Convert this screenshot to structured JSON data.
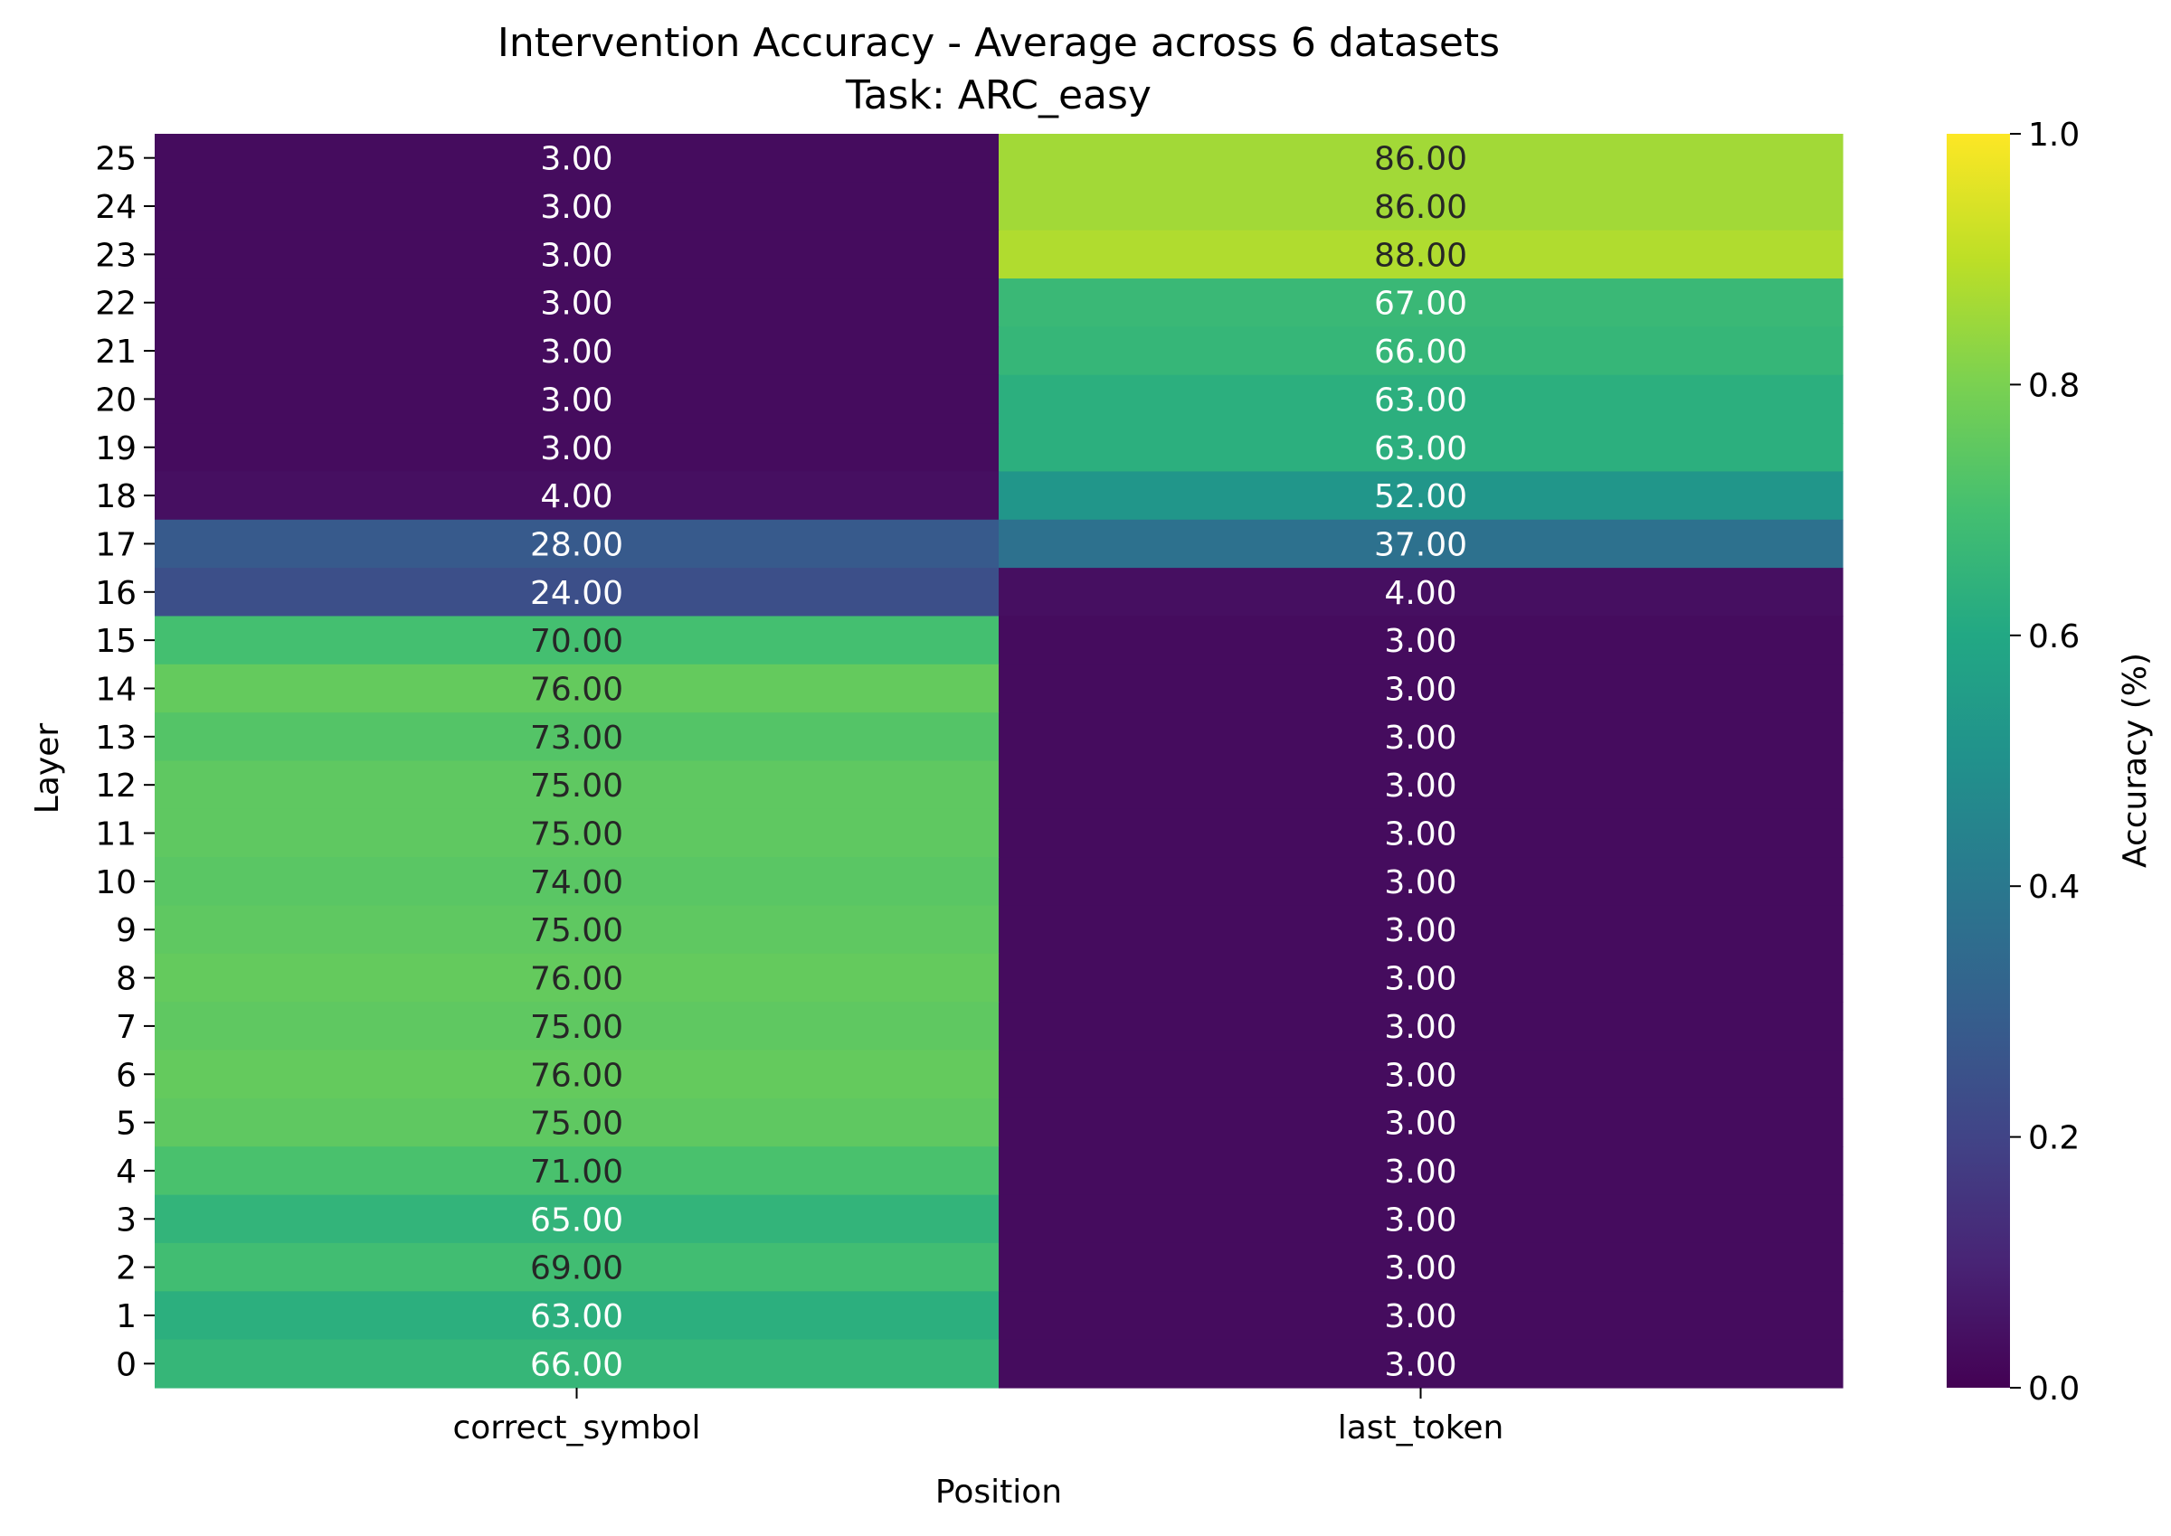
{
  "chart_data": {
    "type": "heatmap",
    "title": "Intervention Accuracy - Average across 6 datasets",
    "subtitle": "Task: ARC_easy",
    "xlabel": "Position",
    "ylabel": "Layer",
    "colorbar_label": "Accuracy (%)",
    "colormap": "viridis",
    "color_range": [
      0.0,
      1.0
    ],
    "colorbar_ticks": [
      "0.0",
      "0.2",
      "0.4",
      "0.6",
      "0.8",
      "1.0"
    ],
    "x_categories": [
      "correct_symbol",
      "last_token"
    ],
    "y_categories": [
      "25",
      "24",
      "23",
      "22",
      "21",
      "20",
      "19",
      "18",
      "17",
      "16",
      "15",
      "14",
      "13",
      "12",
      "11",
      "10",
      "9",
      "8",
      "7",
      "6",
      "5",
      "4",
      "3",
      "2",
      "1",
      "0"
    ],
    "values": [
      [
        3.0,
        86.0
      ],
      [
        3.0,
        86.0
      ],
      [
        3.0,
        88.0
      ],
      [
        3.0,
        67.0
      ],
      [
        3.0,
        66.0
      ],
      [
        3.0,
        63.0
      ],
      [
        3.0,
        63.0
      ],
      [
        4.0,
        52.0
      ],
      [
        28.0,
        37.0
      ],
      [
        24.0,
        4.0
      ],
      [
        70.0,
        3.0
      ],
      [
        76.0,
        3.0
      ],
      [
        73.0,
        3.0
      ],
      [
        75.0,
        3.0
      ],
      [
        75.0,
        3.0
      ],
      [
        74.0,
        3.0
      ],
      [
        75.0,
        3.0
      ],
      [
        76.0,
        3.0
      ],
      [
        75.0,
        3.0
      ],
      [
        76.0,
        3.0
      ],
      [
        75.0,
        3.0
      ],
      [
        71.0,
        3.0
      ],
      [
        65.0,
        3.0
      ],
      [
        69.0,
        3.0
      ],
      [
        63.0,
        3.0
      ],
      [
        66.0,
        3.0
      ]
    ],
    "value_format": "2 decimals",
    "grid": false
  }
}
